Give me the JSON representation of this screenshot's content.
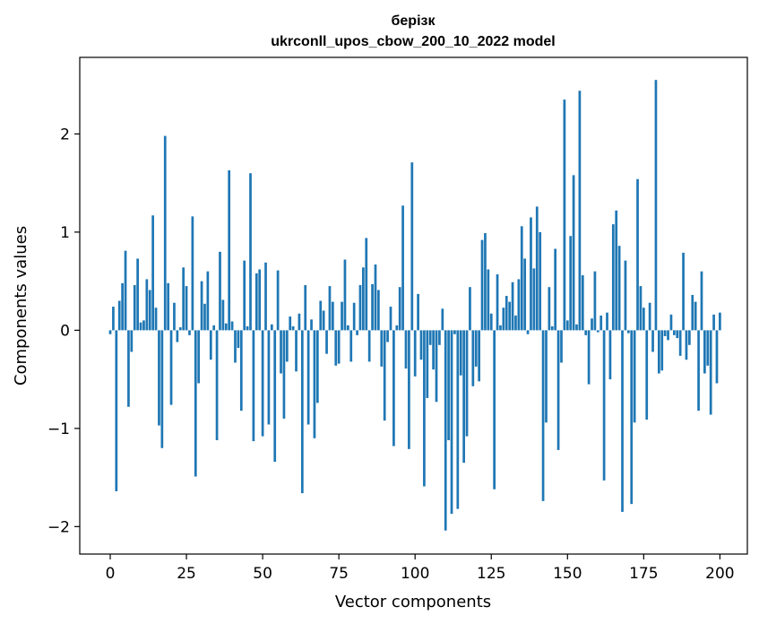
{
  "chart_data": {
    "type": "bar",
    "title": "берізк",
    "subtitle": "ukrconll_upos_cbow_200_10_2022 model",
    "xlabel": "Vector components",
    "ylabel": "Components values",
    "xlim": [
      -10,
      209
    ],
    "ylim": [
      -2.28,
      2.78
    ],
    "xticks": [
      0,
      25,
      50,
      75,
      100,
      125,
      150,
      175,
      200
    ],
    "yticks": [
      -2,
      -1,
      0,
      1,
      2
    ],
    "xtick_labels": [
      "0",
      "25",
      "50",
      "75",
      "100",
      "125",
      "150",
      "175",
      "200"
    ],
    "ytick_labels": [
      "−2",
      "−1",
      "0",
      "1",
      "2"
    ],
    "grid": false,
    "bar_color": "#1f77b4",
    "values": [
      -0.04,
      0.24,
      -1.64,
      0.3,
      0.48,
      0.81,
      -0.78,
      -0.22,
      0.46,
      0.73,
      0.08,
      0.1,
      0.52,
      0.41,
      1.17,
      0.23,
      -0.97,
      -1.2,
      1.98,
      0.48,
      -0.76,
      0.28,
      -0.12,
      0.03,
      0.64,
      0.45,
      -0.05,
      1.16,
      -1.49,
      -0.54,
      0.5,
      0.27,
      0.6,
      -0.3,
      0.05,
      -1.12,
      0.8,
      0.31,
      0.07,
      1.63,
      0.09,
      -0.33,
      -0.18,
      -0.82,
      0.71,
      0.04,
      1.6,
      -1.13,
      0.58,
      0.62,
      -1.08,
      0.69,
      -0.96,
      0.06,
      -1.34,
      0.61,
      -0.44,
      -0.9,
      -0.32,
      0.14,
      0.04,
      -0.42,
      0.17,
      -1.66,
      0.46,
      -0.96,
      0.11,
      -1.1,
      -0.74,
      0.3,
      0.2,
      -0.24,
      0.45,
      0.29,
      -0.36,
      -0.34,
      0.29,
      0.72,
      0.05,
      -0.32,
      0.28,
      -0.05,
      0.46,
      0.64,
      0.94,
      -0.32,
      0.47,
      0.67,
      0.41,
      -0.37,
      -0.92,
      -0.12,
      0.24,
      -1.18,
      0.05,
      0.44,
      1.27,
      -0.39,
      -1.21,
      1.71,
      -0.47,
      0.37,
      -0.3,
      -1.59,
      -0.69,
      -0.15,
      -0.4,
      -0.73,
      -0.15,
      0.22,
      -2.04,
      -1.12,
      -1.87,
      -0.04,
      -1.82,
      -0.46,
      -1.35,
      -1.08,
      0.44,
      -0.57,
      -0.37,
      -0.52,
      0.92,
      0.99,
      0.62,
      0.17,
      -1.62,
      0.57,
      0.05,
      0.23,
      0.35,
      0.29,
      0.49,
      0.15,
      0.52,
      1.06,
      0.73,
      -0.04,
      1.15,
      0.63,
      1.26,
      1.0,
      -1.74,
      -0.94,
      0.44,
      0.04,
      0.83,
      -1.22,
      -0.33,
      2.35,
      0.1,
      0.96,
      1.58,
      0.06,
      2.44,
      0.56,
      -0.05,
      -0.55,
      0.12,
      0.6,
      -0.02,
      0.15,
      -1.53,
      0.18,
      -0.5,
      1.08,
      1.22,
      0.86,
      -1.85,
      0.71,
      -0.03,
      -1.77,
      -0.94,
      1.54,
      0.45,
      0.23,
      -0.91,
      0.28,
      -0.22,
      2.55,
      -0.44,
      -0.41,
      -0.06,
      -0.1,
      0.16,
      -0.05,
      -0.08,
      -0.26,
      0.79,
      -0.3,
      -0.15,
      0.36,
      0.29,
      -0.82,
      0.6,
      -0.44,
      -0.36,
      -0.86,
      0.16,
      -0.54,
      0.18
    ]
  }
}
